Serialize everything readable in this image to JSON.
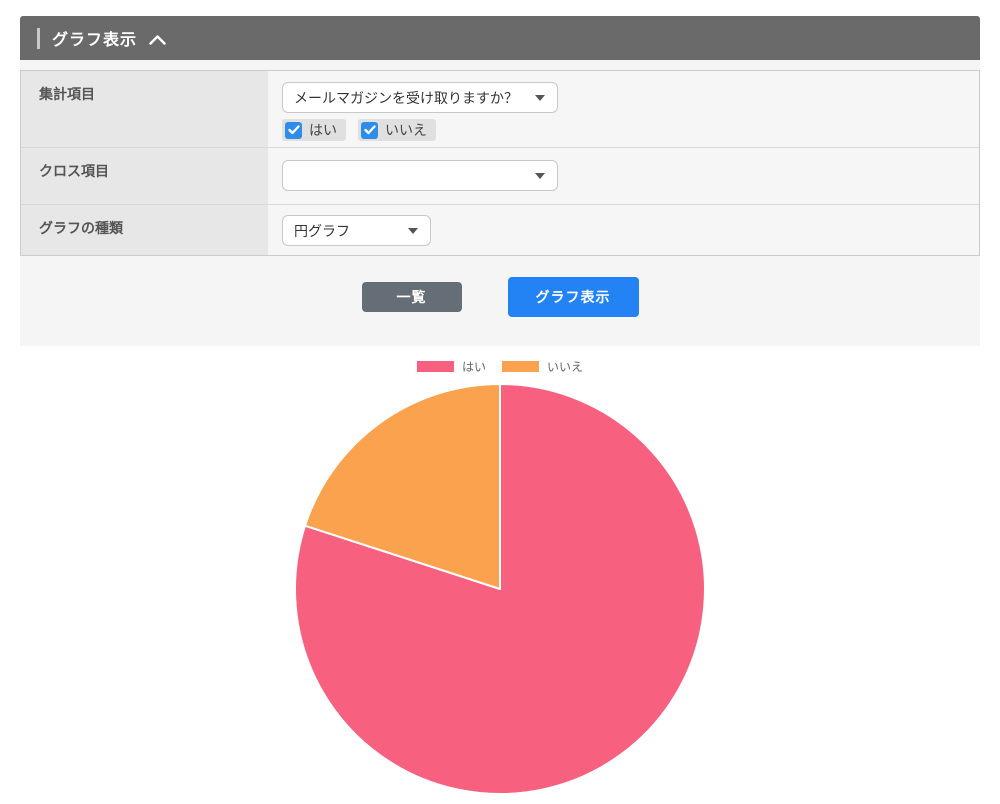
{
  "panel": {
    "title": "グラフ表示",
    "collapse_icon": "chevron-up-icon"
  },
  "form": {
    "rows": [
      {
        "label": "集計項目",
        "select_value": "メールマガジンを受け取りますか？",
        "checkboxes": [
          {
            "label": "はい",
            "checked": true
          },
          {
            "label": "いいえ",
            "checked": true
          }
        ]
      },
      {
        "label": "クロス項目",
        "select_value": ""
      },
      {
        "label": "グラフの種類",
        "select_value": "円グラフ"
      }
    ]
  },
  "actions": {
    "list_label": "一覧",
    "show_graph_label": "グラフ表示"
  },
  "colors": {
    "header_bg": "#6a6a6a",
    "checkbox_blue": "#2e8ceb",
    "button_gray": "#656d76",
    "button_blue": "#2383f4",
    "pie_pink": "#f7617f",
    "pie_orange": "#faa24d"
  },
  "chart_data": {
    "type": "pie",
    "labels": [
      "はい",
      "いいえ"
    ],
    "values": [
      80,
      20
    ],
    "colors": [
      "#f7617f",
      "#faa24d"
    ],
    "legend_position": "top",
    "start_angle_deg": 0,
    "direction": "clockwise",
    "slice_border_color": "#ffffff"
  }
}
